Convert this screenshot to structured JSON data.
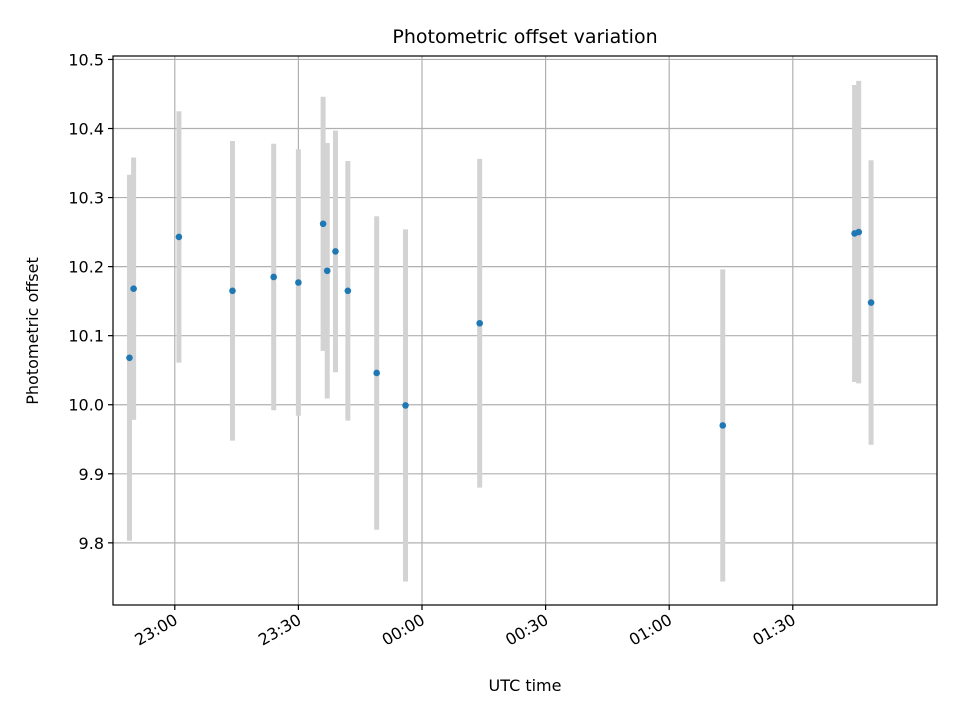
{
  "chart_data": {
    "type": "scatter",
    "title": "Photometric offset variation",
    "xlabel": "UTC time",
    "ylabel": "Photometric offset",
    "xlim": [
      "22:45",
      "02:05"
    ],
    "ylim": [
      9.71,
      10.505
    ],
    "grid": true,
    "x_ticks": [
      "23:00",
      "23:30",
      "00:00",
      "00:30",
      "01:00",
      "01:30"
    ],
    "y_ticks": [
      9.8,
      9.9,
      10.0,
      10.1,
      10.2,
      10.3,
      10.4,
      10.5
    ],
    "y_tick_labels": [
      "9.8",
      "9.9",
      "10.0",
      "10.1",
      "10.2",
      "10.3",
      "10.4",
      "10.5"
    ],
    "colors": {
      "point": "#1f77b4",
      "errorbar": "#d3d3d3",
      "grid": "#b0b0b0"
    },
    "points": [
      {
        "time": "22:49",
        "y": 10.068,
        "yerr": 0.265
      },
      {
        "time": "22:50",
        "y": 10.168,
        "yerr": 0.19
      },
      {
        "time": "23:01",
        "y": 10.243,
        "yerr": 0.182
      },
      {
        "time": "23:14",
        "y": 10.165,
        "yerr": 0.217
      },
      {
        "time": "23:24",
        "y": 10.185,
        "yerr": 0.193
      },
      {
        "time": "23:30",
        "y": 10.177,
        "yerr": 0.193
      },
      {
        "time": "23:36",
        "y": 10.262,
        "yerr": 0.184
      },
      {
        "time": "23:37",
        "y": 10.194,
        "yerr": 0.185
      },
      {
        "time": "23:39",
        "y": 10.222,
        "yerr": 0.175
      },
      {
        "time": "23:42",
        "y": 10.165,
        "yerr": 0.188
      },
      {
        "time": "23:49",
        "y": 10.046,
        "yerr": 0.227
      },
      {
        "time": "23:56",
        "y": 9.999,
        "yerr": 0.255
      },
      {
        "time": "00:14",
        "y": 10.118,
        "yerr": 0.238
      },
      {
        "time": "01:13",
        "y": 9.97,
        "yerr": 0.226
      },
      {
        "time": "01:45",
        "y": 10.248,
        "yerr": 0.215
      },
      {
        "time": "01:46",
        "y": 10.25,
        "yerr": 0.219
      },
      {
        "time": "01:49",
        "y": 10.148,
        "yerr": 0.206
      }
    ]
  }
}
